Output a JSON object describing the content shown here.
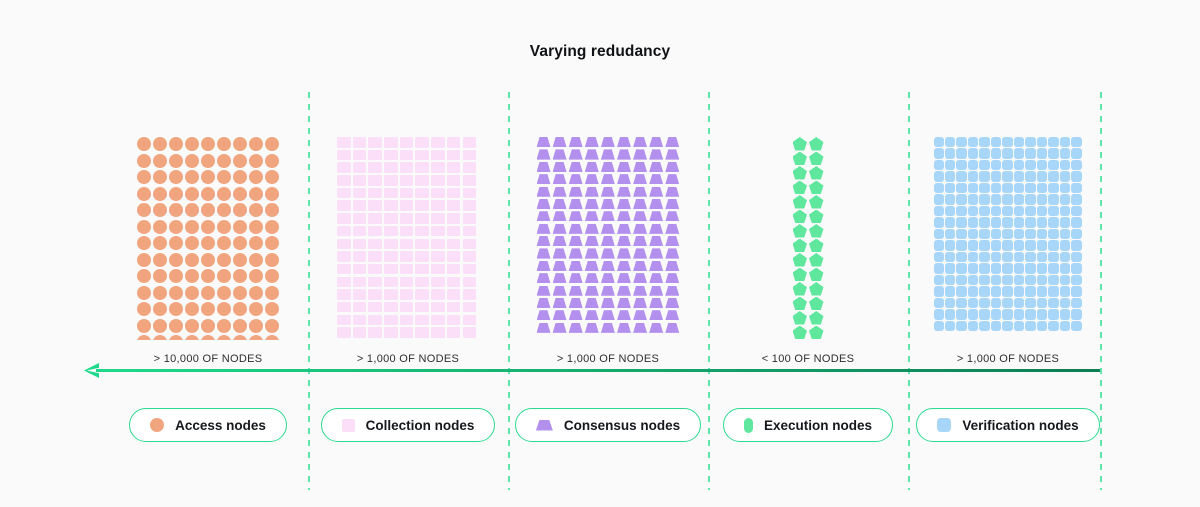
{
  "title": "Varying redudancy",
  "colors": {
    "access": "#f1a57f",
    "collection": "#fbdef7",
    "consensus": "#b490ee",
    "execution": "#5ee79d",
    "verification": "#a7d6f8",
    "pill_border": "#2bda8f",
    "dashed_divider": "#5fe5aa",
    "arrow_start": "#1ed98b",
    "arrow_end": "#0c7d53",
    "background": "#fafafa"
  },
  "axis": {
    "direction": "left",
    "meaning": "decreasing-then-varying redundancy axis arrow"
  },
  "sections": [
    {
      "id": "access",
      "shape": "circle",
      "icon_name": "access-node-circle-icon",
      "cols": 9,
      "rows": 13,
      "count_label": "> 10,000 OF NODES",
      "legend_label": "Access nodes"
    },
    {
      "id": "collection",
      "shape": "square",
      "icon_name": "collection-node-square-icon",
      "cols": 9,
      "rows": 17,
      "count_label": "> 1,000 OF NODES",
      "legend_label": "Collection nodes"
    },
    {
      "id": "consensus",
      "shape": "trapezoid",
      "icon_name": "consensus-node-trapezoid-icon",
      "cols": 9,
      "rows": 16,
      "count_label": "> 1,000 OF NODES",
      "legend_label": "Consensus nodes"
    },
    {
      "id": "execution",
      "shape": "pentagon",
      "icon_name": "execution-node-pentagon-icon",
      "cols": 2,
      "rows": 14,
      "count_label": "< 100 OF NODES",
      "legend_label": "Execution nodes"
    },
    {
      "id": "verification",
      "shape": "rounded-square",
      "icon_name": "verification-node-square-icon",
      "cols": 13,
      "rows": 17,
      "count_label": "> 1,000 OF NODES",
      "legend_label": "Verification nodes"
    }
  ]
}
